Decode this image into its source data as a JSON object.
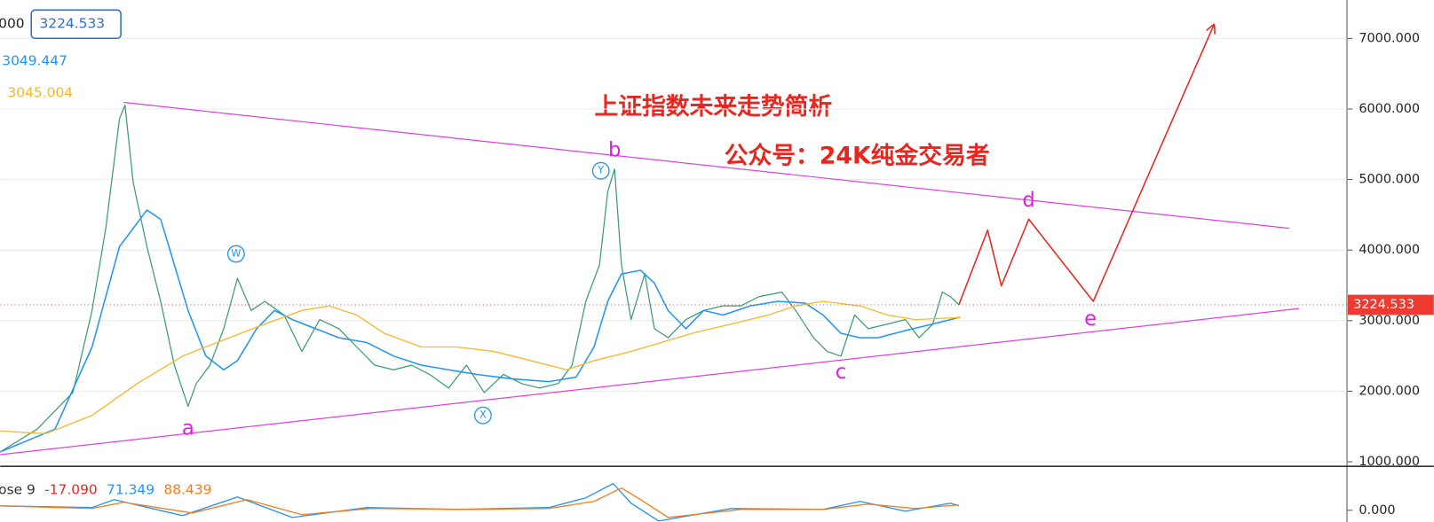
{
  "chart_data": [
    {
      "type": "line",
      "title": "上证指数未来走势简析",
      "subtitle": "公众号：24K纯金交易者",
      "readouts": [
        {
          "text": "000"
        },
        {
          "text": "3224.533",
          "boxed": true,
          "color": "#2a6fd6"
        },
        {
          "text": "3049.447",
          "color": "#2196f3"
        },
        {
          "text": "3045.004",
          "color": "#f5b82e"
        }
      ],
      "price_tag": "3224.533",
      "xlim": [
        0,
        98
      ],
      "ylim": [
        935,
        7545
      ],
      "yticks": [
        {
          "value": 1000,
          "label": "1000.000"
        },
        {
          "value": 2000,
          "label": "2000.000"
        },
        {
          "value": 3000,
          "label": "3000.000"
        },
        {
          "value": 4000,
          "label": "4000.000"
        },
        {
          "value": 5000,
          "label": "5000.000"
        },
        {
          "value": 6000,
          "label": "6000.000"
        },
        {
          "value": 7000,
          "label": "7000.000"
        }
      ],
      "grid": true,
      "series": [
        {
          "color": "#3c9b6e",
          "width": 1.2,
          "x": [
            0,
            2.7,
            5.3,
            6.7,
            7.7,
            8.7,
            9.1,
            9.7,
            10.7,
            11.7,
            12.7,
            13.7,
            14.3,
            15.3,
            16.3,
            17.3,
            18.3,
            19.3,
            20.7,
            22,
            23.3,
            24.7,
            26,
            27.3,
            28.7,
            30,
            31.3,
            32.7,
            34,
            35.3,
            36.7,
            38,
            39.3,
            40.7,
            41.7,
            42.7,
            43.7,
            44.3,
            44.8,
            45.3,
            46,
            47,
            47.7,
            48.7,
            50,
            51.3,
            52.7,
            54,
            55.3,
            57,
            58,
            59.3,
            60.3,
            61.3,
            62.3,
            63.3,
            64.7,
            66,
            67,
            68,
            68.7,
            69.3,
            69.9
          ],
          "values": [
            1140,
            1463,
            1980,
            3145,
            4310,
            5862,
            6056,
            4956,
            4050,
            3274,
            2369,
            1786,
            2110,
            2369,
            2886,
            3598,
            3145,
            3274,
            3080,
            2563,
            3015,
            2886,
            2627,
            2369,
            2304,
            2369,
            2239,
            2045,
            2369,
            1980,
            2239,
            2110,
            2045,
            2110,
            2369,
            3274,
            3792,
            4827,
            5150,
            3792,
            3015,
            3662,
            2886,
            2757,
            3015,
            3145,
            3209,
            3209,
            3339,
            3404,
            3145,
            2757,
            2563,
            2498,
            3080,
            2886,
            2951,
            3015,
            2757,
            2951,
            3404,
            3339,
            3224.533
          ]
        },
        {
          "color": "#2196f3",
          "width": 1.5,
          "x": [
            0,
            4,
            6.7,
            8.7,
            10.7,
            11.7,
            12.7,
            13.7,
            15,
            16.3,
            17.3,
            18.7,
            20,
            21.3,
            23,
            24.7,
            26.7,
            28.7,
            30.7,
            32.7,
            34.7,
            37.3,
            40,
            42,
            43.3,
            44.3,
            45.3,
            46.7,
            47.7,
            48.7,
            50,
            51.3,
            52.7,
            54.7,
            56.7,
            58.7,
            60,
            61.3,
            62.7,
            64,
            66,
            68,
            70
          ],
          "values": [
            1140,
            1463,
            2627,
            4050,
            4568,
            4438,
            3792,
            3145,
            2498,
            2304,
            2433,
            2886,
            3145,
            3015,
            2886,
            2757,
            2692,
            2498,
            2369,
            2304,
            2239,
            2175,
            2136,
            2200,
            2627,
            3274,
            3662,
            3714,
            3533,
            3145,
            2886,
            3145,
            3080,
            3209,
            3274,
            3248,
            3080,
            2821,
            2757,
            2757,
            2860,
            2951,
            3049.447
          ]
        },
        {
          "color": "#f5b82e",
          "width": 1.3,
          "x": [
            0,
            3.3,
            6.7,
            10,
            13.3,
            16.7,
            19.3,
            22,
            24,
            26,
            28,
            30.7,
            33.3,
            36,
            38.7,
            41.3,
            43.3,
            46,
            48,
            50.7,
            53.3,
            56,
            58,
            60,
            62.7,
            64.7,
            66.7,
            70
          ],
          "values": [
            1437,
            1398,
            1657,
            2110,
            2498,
            2757,
            2951,
            3145,
            3209,
            3080,
            2821,
            2627,
            2627,
            2563,
            2433,
            2304,
            2433,
            2563,
            2679,
            2834,
            2951,
            3080,
            3209,
            3274,
            3209,
            3080,
            3015,
            3045.004
          ]
        },
        {
          "color": "#e040e0",
          "width": 1.2,
          "x": [
            9,
            94
          ],
          "values": [
            6094,
            4309
          ]
        },
        {
          "color": "#e040e0",
          "width": 1.2,
          "x": [
            0,
            94.7
          ],
          "values": [
            1101,
            3171
          ]
        },
        {
          "color": "#e8261f",
          "width": 1.5,
          "arrow": true,
          "x": [
            69.9,
            72,
            73,
            75,
            79.7,
            88.5
          ],
          "values": [
            3224.533,
            4283,
            3494,
            4438,
            3274,
            7194
          ]
        }
      ],
      "annotations": [
        {
          "text": "a",
          "x": 13.7,
          "y": 1463,
          "color": "#e020e0"
        },
        {
          "text": "b",
          "x": 44.8,
          "y": 5409,
          "color": "#e020e0"
        },
        {
          "text": "c",
          "x": 61.3,
          "y": 2265,
          "color": "#e020e0"
        },
        {
          "text": "d",
          "x": 75,
          "y": 4697,
          "color": "#e020e0"
        },
        {
          "text": "e",
          "x": 79.5,
          "y": 3015,
          "color": "#e020e0"
        },
        {
          "text": "W",
          "x": 17.2,
          "y": 3947,
          "color": "#2196f3",
          "circled": true
        },
        {
          "text": "X",
          "x": 35.2,
          "y": 1657,
          "color": "#2196f3",
          "circled": true
        },
        {
          "text": "Y",
          "x": 43.8,
          "y": 5124,
          "color": "#2196f3",
          "circled": true
        }
      ]
    },
    {
      "type": "line",
      "readouts": [
        {
          "text": "ose 9",
          "color": "#333333"
        },
        {
          "text": "-17.090",
          "color": "#e8261f"
        },
        {
          "text": "71.349",
          "color": "#2196f3"
        },
        {
          "text": "88.439",
          "color": "#f57c1f"
        }
      ],
      "xlim": [
        0,
        98
      ],
      "ylim": [
        -25,
        90
      ],
      "yticks": [
        {
          "value": 0,
          "label": "0.000"
        }
      ],
      "series": [
        {
          "color": "#2196f3",
          "width": 1.3,
          "x": [
            0,
            6.7,
            8.3,
            13.3,
            17.3,
            21.3,
            26.7,
            33.3,
            40,
            42.7,
            44.7,
            46,
            48,
            53.3,
            60,
            62.7,
            66,
            69.3,
            69.9
          ],
          "values": [
            9.5,
            5.7,
            22.8,
            -11.4,
            28.5,
            -15.2,
            5.7,
            1.9,
            5.7,
            26.6,
            57,
            15.2,
            -22.8,
            3.8,
            1.9,
            19,
            -1.9,
            15.2,
            9.5
          ]
        },
        {
          "color": "#f57c1f",
          "width": 1.3,
          "x": [
            0,
            6.7,
            9,
            14,
            18,
            22,
            27,
            34,
            40,
            43.3,
            45.3,
            46.7,
            48.7,
            54,
            60,
            63.3,
            66.7,
            69.9
          ],
          "values": [
            9.5,
            3.8,
            17.1,
            -5.7,
            22.8,
            -9.5,
            3.8,
            1.9,
            3.8,
            19,
            47.5,
            22.8,
            -15.2,
            1.9,
            1.9,
            13.3,
            3.8,
            11.4
          ]
        }
      ]
    }
  ]
}
